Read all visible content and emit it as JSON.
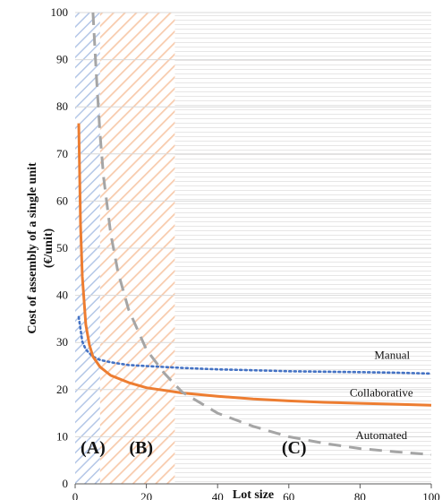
{
  "chart_data": {
    "type": "line",
    "title": "",
    "xlabel": "Lot size",
    "ylabel_line1": "Cost of assembly of a single unit",
    "ylabel_line2": "(€/unit)",
    "xlim": [
      0,
      100
    ],
    "ylim": [
      0,
      100
    ],
    "x_ticks": [
      0,
      20,
      40,
      60,
      80,
      100
    ],
    "y_ticks": [
      0,
      10,
      20,
      30,
      40,
      50,
      60,
      70,
      80,
      90,
      100
    ],
    "grid": "horizontal",
    "regions": [
      {
        "label": "(A)",
        "x_start": 0,
        "x_end": 7,
        "color": "#b4c7e7",
        "hatch": "diagonal",
        "label_y": 6.5
      },
      {
        "label": "(B)",
        "x_start": 7,
        "x_end": 28,
        "color": "#f8cbad",
        "hatch": "diagonal",
        "label_y": 6.5
      },
      {
        "label": "(C)",
        "x_start": 28,
        "x_end": 100,
        "color": "#e7e6e6",
        "hatch": "horizontal",
        "label_y": 6.5
      }
    ],
    "series": [
      {
        "name": "Manual",
        "color": "#4472c4",
        "style": "dotted",
        "x": [
          1,
          2,
          3,
          5,
          7,
          10,
          15,
          20,
          30,
          40,
          50,
          60,
          70,
          80,
          90,
          100
        ],
        "values": [
          35.4,
          30.2,
          28.5,
          27.0,
          26.3,
          25.8,
          25.2,
          25.0,
          24.6,
          24.3,
          24.1,
          23.9,
          23.8,
          23.7,
          23.6,
          23.4
        ],
        "label_pos": [
          89,
          26.5
        ]
      },
      {
        "name": "Collaborative",
        "color": "#ed7d31",
        "style": "solid",
        "x": [
          1,
          1.5,
          2,
          3,
          4,
          5,
          7,
          10,
          15,
          20,
          30,
          40,
          50,
          60,
          70,
          80,
          90,
          100
        ],
        "values": [
          76.5,
          55.0,
          44.0,
          33.8,
          29.5,
          27.0,
          24.8,
          23.0,
          21.5,
          20.4,
          19.3,
          18.6,
          18.0,
          17.6,
          17.3,
          17.1,
          16.9,
          16.7
        ],
        "label_pos": [
          86,
          18.5
        ]
      },
      {
        "name": "Automated",
        "color": "#a5a5a5",
        "style": "dashed",
        "x": [
          5,
          6,
          7,
          8,
          10,
          12,
          15,
          20,
          25,
          30,
          40,
          50,
          60,
          70,
          80,
          90,
          100
        ],
        "values": [
          100,
          86.0,
          74.0,
          65.0,
          53.0,
          45.0,
          37.0,
          28.5,
          23.5,
          19.5,
          15.0,
          12.2,
          10.0,
          8.6,
          7.5,
          6.8,
          6.2
        ],
        "label_pos": [
          86,
          9.5
        ]
      }
    ]
  }
}
